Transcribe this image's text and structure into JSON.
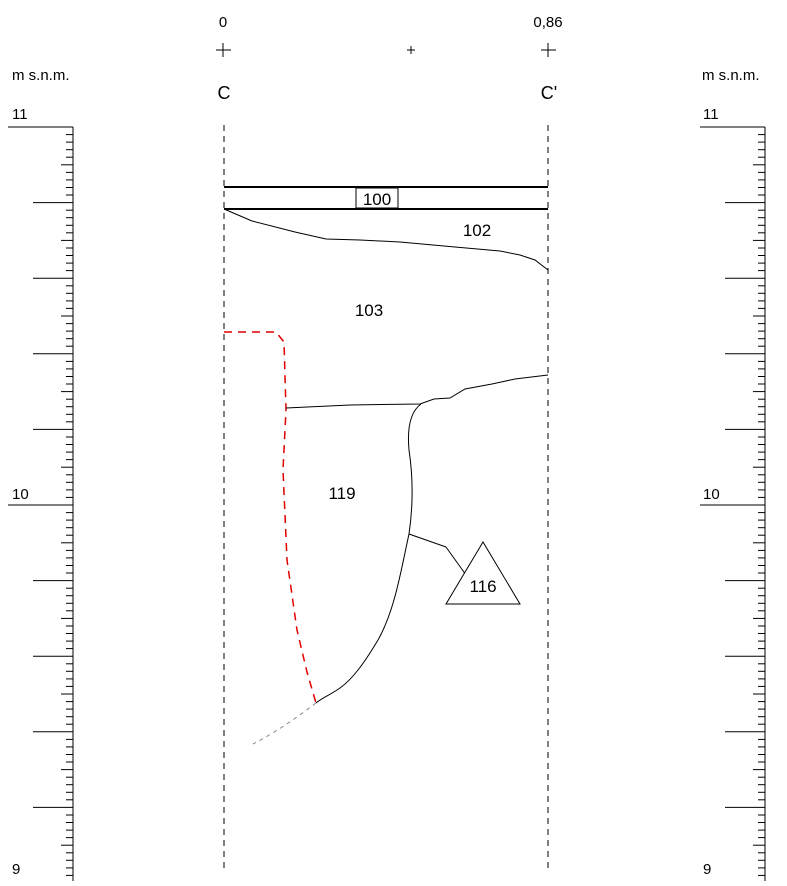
{
  "header": {
    "left_coord": "0",
    "right_coord": "0,86",
    "left_point": "C",
    "right_point": "C'"
  },
  "scales": {
    "unit_label": "m s.n.m.",
    "left": {
      "top": "11",
      "mid": "10",
      "bottom": "9"
    },
    "right": {
      "top": "11",
      "mid": "10",
      "bottom": "9"
    }
  },
  "units": {
    "u100": "100",
    "u102": "102",
    "u103": "103",
    "u119": "119",
    "u116": "116"
  },
  "colors": {
    "line": "#000000",
    "cut_line": "#e00000",
    "dashed_gray": "#888888"
  }
}
